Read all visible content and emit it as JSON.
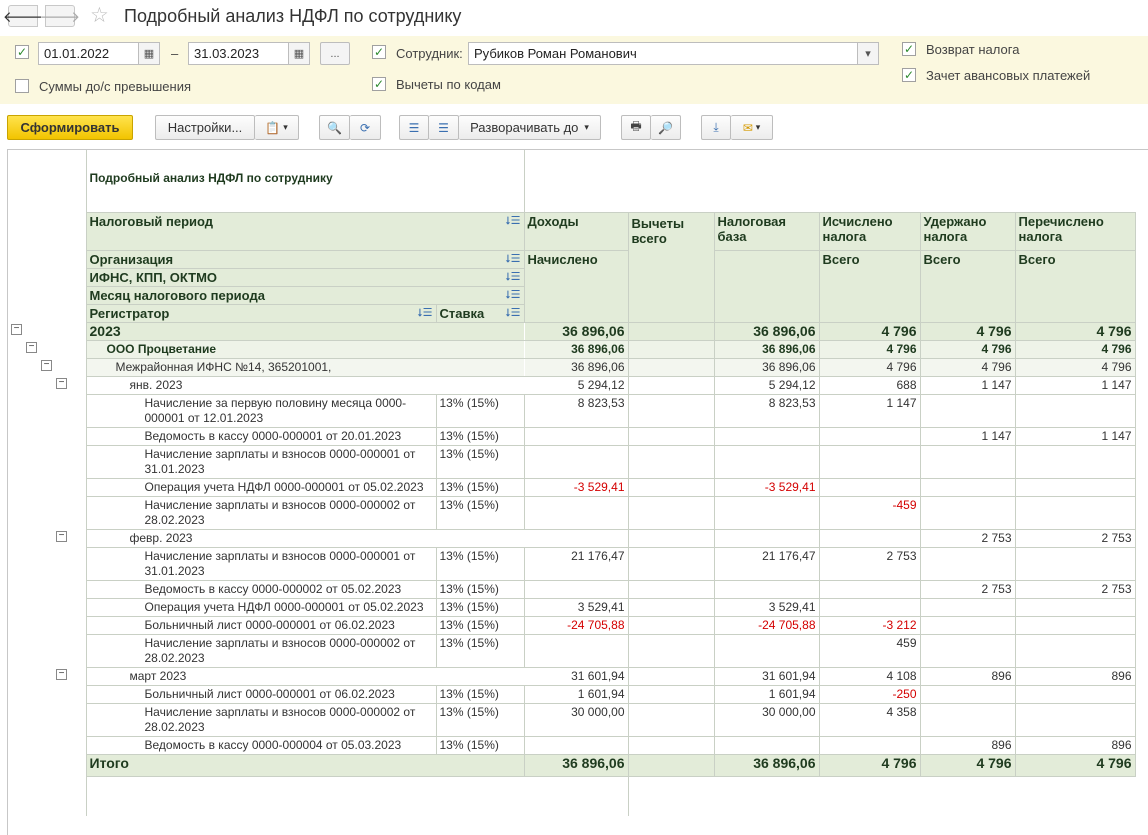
{
  "window": {
    "title": "Подробный анализ НДФЛ по сотруднику"
  },
  "filters": {
    "date_from": "01.01.2022",
    "date_sep": "–",
    "date_to": "31.03.2023",
    "period_btn": "...",
    "employee_label": "Сотрудник:",
    "employee_value": "Рубиков Роман Романович",
    "sums_exceed_label": "Суммы до/с превышения",
    "deductions_by_codes_label": "Вычеты по кодам",
    "tax_return_label": "Возврат налога",
    "advance_offset_label": "Зачет авансовых платежей"
  },
  "toolbar": {
    "generate": "Сформировать",
    "settings": "Настройки...",
    "expand_to": "Разворачивать до"
  },
  "report": {
    "title": "Подробный анализ НДФЛ по сотруднику",
    "headers": {
      "tax_period": "Налоговый период",
      "organization": "Организация",
      "ifns": "ИФНС, КПП, ОКТМО",
      "month": "Месяц налогового периода",
      "registrar": "Регистратор",
      "rate": "Ставка",
      "income": "Доходы",
      "accrued": "Начислено",
      "deductions": "Вычеты всего",
      "tax_base": "Налоговая база",
      "calculated": "Исчислено налога",
      "withheld": "Удержано налога",
      "transferred": "Перечислено налога",
      "total_sub": "Всего"
    },
    "rows": [
      {
        "level": 0,
        "label": "2023",
        "rate": "",
        "income": "36 896,06",
        "base": "36 896,06",
        "calc": "4 796",
        "withheld": "4 796",
        "transferred": "4 796"
      },
      {
        "level": 1,
        "label": "ООО Процветание",
        "rate": "",
        "income": "36 896,06",
        "base": "36 896,06",
        "calc": "4 796",
        "withheld": "4 796",
        "transferred": "4 796"
      },
      {
        "level": 2,
        "label": "Межрайонная ИФНС №14, 365201001,",
        "rate": "",
        "income": "36 896,06",
        "base": "36 896,06",
        "calc": "4 796",
        "withheld": "4 796",
        "transferred": "4 796"
      },
      {
        "level": 3,
        "label": "янв. 2023",
        "rate": "",
        "income": "5 294,12",
        "base": "5 294,12",
        "calc": "688",
        "withheld": "1 147",
        "transferred": "1 147"
      },
      {
        "level": 4,
        "label": "Начисление за первую половину месяца 0000-000001 от 12.01.2023",
        "rate": "13% (15%)",
        "income": "8 823,53",
        "base": "8 823,53",
        "calc": "1 147",
        "withheld": "",
        "transferred": ""
      },
      {
        "level": 4,
        "label": "Ведомость в кассу 0000-000001 от 20.01.2023",
        "rate": "13% (15%)",
        "income": "",
        "base": "",
        "calc": "",
        "withheld": "1 147",
        "transferred": "1 147"
      },
      {
        "level": 4,
        "label": "Начисление зарплаты и взносов 0000-000001 от 31.01.2023",
        "rate": "13% (15%)",
        "income": "",
        "base": "",
        "calc": "",
        "withheld": "",
        "transferred": ""
      },
      {
        "level": 4,
        "label": "Операция учета НДФЛ 0000-000001 от 05.02.2023",
        "rate": "13% (15%)",
        "income": "-3 529,41",
        "base": "-3 529,41",
        "calc": "",
        "withheld": "",
        "transferred": ""
      },
      {
        "level": 4,
        "label": "Начисление зарплаты и взносов 0000-000002 от 28.02.2023",
        "rate": "13% (15%)",
        "income": "",
        "base": "",
        "calc": "-459",
        "withheld": "",
        "transferred": ""
      },
      {
        "level": 3,
        "label": "февр. 2023",
        "rate": "",
        "income": "",
        "base": "",
        "calc": "",
        "withheld": "2 753",
        "transferred": "2 753"
      },
      {
        "level": 4,
        "label": "Начисление зарплаты и взносов 0000-000001 от 31.01.2023",
        "rate": "13% (15%)",
        "income": "21 176,47",
        "base": "21 176,47",
        "calc": "2 753",
        "withheld": "",
        "transferred": ""
      },
      {
        "level": 4,
        "label": "Ведомость в кассу 0000-000002 от 05.02.2023",
        "rate": "13% (15%)",
        "income": "",
        "base": "",
        "calc": "",
        "withheld": "2 753",
        "transferred": "2 753"
      },
      {
        "level": 4,
        "label": "Операция учета НДФЛ 0000-000001 от 05.02.2023",
        "rate": "13% (15%)",
        "income": "3 529,41",
        "base": "3 529,41",
        "calc": "",
        "withheld": "",
        "transferred": ""
      },
      {
        "level": 4,
        "label": "Больничный лист 0000-000001 от 06.02.2023",
        "rate": "13% (15%)",
        "income": "-24 705,88",
        "base": "-24 705,88",
        "calc": "-3 212",
        "withheld": "",
        "transferred": ""
      },
      {
        "level": 4,
        "label": "Начисление зарплаты и взносов 0000-000002 от 28.02.2023",
        "rate": "13% (15%)",
        "income": "",
        "base": "",
        "calc": "459",
        "withheld": "",
        "transferred": ""
      },
      {
        "level": 3,
        "label": "март 2023",
        "rate": "",
        "income": "31 601,94",
        "base": "31 601,94",
        "calc": "4 108",
        "withheld": "896",
        "transferred": "896"
      },
      {
        "level": 4,
        "label": "Больничный лист 0000-000001 от 06.02.2023",
        "rate": "13% (15%)",
        "income": "1 601,94",
        "base": "1 601,94",
        "calc": "-250",
        "withheld": "",
        "transferred": ""
      },
      {
        "level": 4,
        "label": "Начисление зарплаты и взносов 0000-000002 от 28.02.2023",
        "rate": "13% (15%)",
        "income": "30 000,00",
        "base": "30 000,00",
        "calc": "4 358",
        "withheld": "",
        "transferred": ""
      },
      {
        "level": 4,
        "label": "Ведомость в кассу 0000-000004 от 05.03.2023",
        "rate": "13% (15%)",
        "income": "",
        "base": "",
        "calc": "",
        "withheld": "896",
        "transferred": "896"
      }
    ],
    "total": {
      "label": "Итого",
      "income": "36 896,06",
      "base": "36 896,06",
      "calc": "4 796",
      "withheld": "4 796",
      "transferred": "4 796"
    }
  }
}
